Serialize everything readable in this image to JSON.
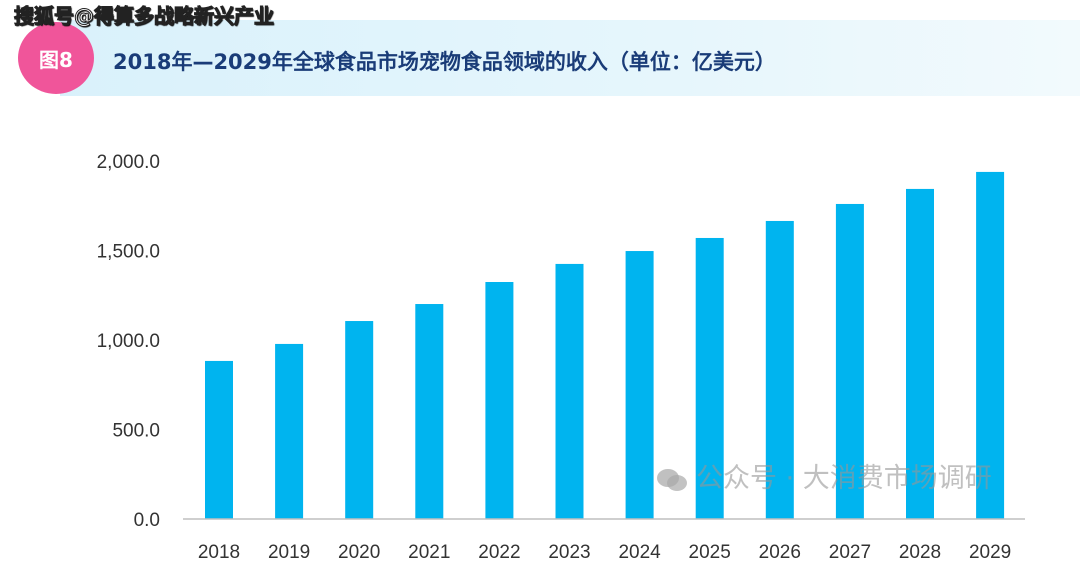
{
  "source_watermark": "搜狐号@得算多战略新兴产业",
  "figure_badge": "图8",
  "bottom_watermark": "公众号 · 大消费市场调研",
  "chart_data": {
    "type": "bar",
    "title": "2018年—2029年全球食品市场宠物食品领域的收入（单位：亿美元）",
    "categories": [
      "2018",
      "2019",
      "2020",
      "2021",
      "2022",
      "2023",
      "2024",
      "2025",
      "2026",
      "2027",
      "2028",
      "2029"
    ],
    "values": [
      883,
      978,
      1106,
      1201,
      1324,
      1425,
      1497,
      1570,
      1665,
      1760,
      1844,
      1939
    ],
    "ylim": [
      0,
      2000
    ],
    "yticks": [
      0,
      500,
      1000,
      1500,
      2000
    ],
    "ytick_labels": [
      "0.0",
      "500.0",
      "1,000.0",
      "1,500.0",
      "2,000.0"
    ],
    "grid": false,
    "bar_color": "#00b4ef",
    "badge_color": "#f0559a",
    "title_color": "#1a3c78"
  }
}
